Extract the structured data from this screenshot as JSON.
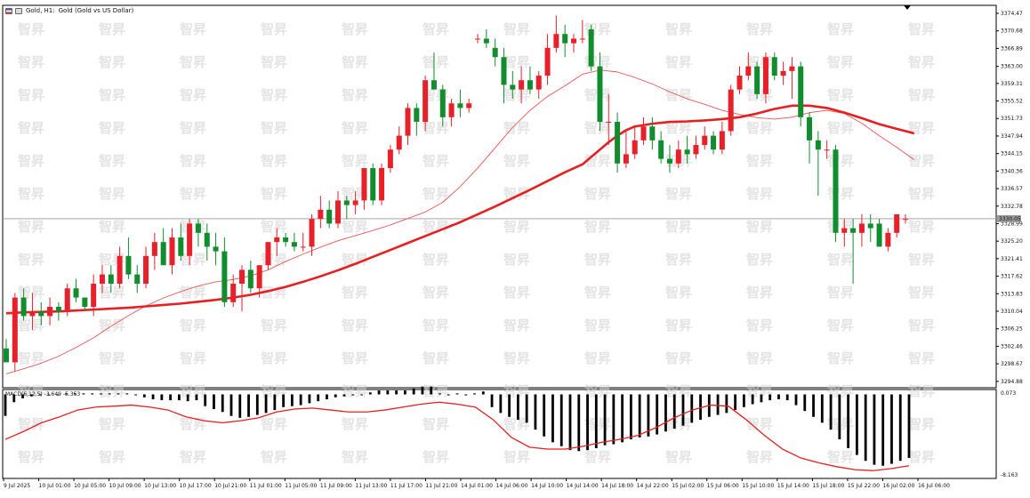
{
  "header": {
    "symbol": "Gold, H1:",
    "description": "Gold (Gold vs US Dollar)"
  },
  "macd": {
    "label": "MACD(6,12,5) -3.649 -5.353"
  },
  "watermark": "智昇",
  "colors": {
    "bull": "#e8202a",
    "bear": "#118d2e",
    "ma_slow": "#e62020",
    "ma_fast": "#ee5555",
    "macd_signal": "#e62020",
    "macd_hist": "#000000"
  },
  "chart_data": {
    "type": "candlestick",
    "price_axis": {
      "ticks": [
        "3374.47",
        "3370.68",
        "3366.89",
        "3363.00",
        "3359.31",
        "3355.52",
        "3351.73",
        "3347.94",
        "3344.15",
        "3340.36",
        "3336.57",
        "3332.78",
        "3328.99",
        "3325.20",
        "3321.41",
        "3317.62",
        "3313.83",
        "3310.04",
        "3306.25",
        "3302.46",
        "3298.67",
        "3294.88"
      ],
      "range": [
        3293.5,
        3376.2
      ],
      "current_price": "3330.05",
      "current_value": 3330.05
    },
    "time_axis": {
      "labels": [
        "9 Jul 2025",
        "10 Jul 01:00",
        "10 Jul 05:00",
        "10 Jul 09:00",
        "10 Jul 13:00",
        "10 Jul 17:00",
        "10 Jul 21:00",
        "11 Jul 01:00",
        "11 Jul 05:00",
        "11 Jul 09:00",
        "11 Jul 13:00",
        "11 Jul 17:00",
        "11 Jul 21:00",
        "14 Jul 01:00",
        "14 Jul 06:00",
        "14 Jul 10:00",
        "14 Jul 14:00",
        "14 Jul 18:00",
        "14 Jul 22:00",
        "15 Jul 02:00",
        "15 Jul 06:00",
        "15 Jul 10:00",
        "15 Jul 14:00",
        "15 Jul 18:00",
        "15 Jul 22:00",
        "16 Jul 02:00",
        "16 Jul 06:00"
      ]
    },
    "candles": [
      [
        3302,
        3304,
        3299,
        3299
      ],
      [
        3299,
        3314,
        3297,
        3313
      ],
      [
        3313,
        3315,
        3308,
        3309
      ],
      [
        3309,
        3314,
        3306,
        3310
      ],
      [
        3310,
        3312,
        3307,
        3309
      ],
      [
        3309,
        3313,
        3307,
        3311
      ],
      [
        3311,
        3312,
        3308,
        3310
      ],
      [
        3310,
        3316,
        3309,
        3315
      ],
      [
        3315,
        3317,
        3312,
        3313
      ],
      [
        3313,
        3313,
        3310,
        3311
      ],
      [
        3311,
        3318,
        3309,
        3316
      ],
      [
        3316,
        3320,
        3314,
        3318
      ],
      [
        3318,
        3320,
        3314,
        3316
      ],
      [
        3316,
        3324,
        3315,
        3322
      ],
      [
        3322,
        3326,
        3317,
        3318
      ],
      [
        3318,
        3320,
        3314,
        3316
      ],
      [
        3316,
        3324,
        3315,
        3322
      ],
      [
        3322,
        3327,
        3319,
        3325
      ],
      [
        3325,
        3328,
        3320,
        3320
      ],
      [
        3320,
        3328,
        3318,
        3326
      ],
      [
        3326,
        3329,
        3321,
        3322
      ],
      [
        3322,
        3330,
        3320,
        3329
      ],
      [
        3329,
        3330,
        3324,
        3327
      ],
      [
        3327,
        3329,
        3321,
        3324
      ],
      [
        3324,
        3327,
        3320,
        3323
      ],
      [
        3323,
        3326,
        3311,
        3312
      ],
      [
        3312,
        3318,
        3311,
        3316
      ],
      [
        3316,
        3320,
        3310,
        3319
      ],
      [
        3319,
        3321,
        3314,
        3315
      ],
      [
        3315,
        3320,
        3313,
        3320
      ],
      [
        3320,
        3325,
        3319,
        3325
      ],
      [
        3325,
        3328,
        3322,
        3326
      ],
      [
        3326,
        3327,
        3324,
        3325
      ],
      [
        3325,
        3327,
        3323,
        3324
      ],
      [
        3324,
        3327,
        3323,
        3324
      ],
      [
        3324,
        3331,
        3322,
        3330
      ],
      [
        3330,
        3335,
        3328,
        3332
      ],
      [
        3332,
        3334,
        3328,
        3329
      ],
      [
        3329,
        3336,
        3328,
        3334
      ],
      [
        3334,
        3335,
        3330,
        3333
      ],
      [
        3333,
        3336,
        3331,
        3334
      ],
      [
        3334,
        3341,
        3332,
        3341
      ],
      [
        3341,
        3342,
        3333,
        3334
      ],
      [
        3334,
        3342,
        3333,
        3341
      ],
      [
        3341,
        3346,
        3340,
        3345
      ],
      [
        3345,
        3350,
        3344,
        3348
      ],
      [
        3348,
        3355,
        3346,
        3354
      ],
      [
        3354,
        3355,
        3348,
        3351
      ],
      [
        3351,
        3361,
        3349,
        3360
      ],
      [
        3360,
        3366,
        3358,
        3358
      ],
      [
        3358,
        3359,
        3350,
        3352
      ],
      [
        3352,
        3356,
        3350,
        3355
      ],
      [
        3355,
        3358,
        3352,
        3354
      ],
      [
        3354,
        3356,
        3353,
        3355
      ],
      [
        3369,
        3370,
        3368,
        3369
      ],
      [
        3369,
        3371,
        3367,
        3368
      ],
      [
        3367,
        3369,
        3363,
        3365
      ],
      [
        3365,
        3367,
        3355,
        3359
      ],
      [
        3359,
        3362,
        3356,
        3358
      ],
      [
        3358,
        3363,
        3355,
        3360
      ],
      [
        3360,
        3363,
        3357,
        3358
      ],
      [
        3358,
        3362,
        3356,
        3361
      ],
      [
        3361,
        3370,
        3359,
        3367
      ],
      [
        3367,
        3374,
        3366,
        3370
      ],
      [
        3370,
        3372,
        3365,
        3368
      ],
      [
        3368,
        3370,
        3366,
        3369
      ],
      [
        3369,
        3373,
        3368,
        3369
      ],
      [
        3371,
        3372,
        3362,
        3363
      ],
      [
        3363,
        3366,
        3349,
        3351
      ],
      [
        3351,
        3357,
        3346,
        3351
      ],
      [
        3351,
        3353,
        3340,
        3342
      ],
      [
        3342,
        3349,
        3341,
        3344
      ],
      [
        3344,
        3350,
        3343,
        3347
      ],
      [
        3347,
        3352,
        3346,
        3350
      ],
      [
        3350,
        3352,
        3345,
        3347
      ],
      [
        3347,
        3349,
        3342,
        3343
      ],
      [
        3343,
        3346,
        3340,
        3342
      ],
      [
        3342,
        3347,
        3341,
        3345
      ],
      [
        3345,
        3348,
        3342,
        3344
      ],
      [
        3344,
        3348,
        3343,
        3346
      ],
      [
        3346,
        3350,
        3345,
        3348
      ],
      [
        3348,
        3349,
        3344,
        3345
      ],
      [
        3345,
        3351,
        3344,
        3349
      ],
      [
        3349,
        3359,
        3348,
        3358
      ],
      [
        3358,
        3363,
        3357,
        3361
      ],
      [
        3361,
        3366,
        3360,
        3363
      ],
      [
        3363,
        3364,
        3356,
        3357
      ],
      [
        3357,
        3366,
        3355,
        3365
      ],
      [
        3365,
        3366,
        3360,
        3361
      ],
      [
        3361,
        3364,
        3359,
        3362
      ],
      [
        3362,
        3365,
        3356,
        3363
      ],
      [
        3363,
        3364,
        3350,
        3352
      ],
      [
        3352,
        3353,
        3342,
        3347
      ],
      [
        3347,
        3349,
        3335,
        3345
      ],
      [
        3345,
        3347,
        3343,
        3345
      ],
      [
        3345,
        3346,
        3325,
        3327
      ],
      [
        3327,
        3330,
        3324,
        3328
      ],
      [
        3328,
        3330,
        3316,
        3327
      ],
      [
        3327,
        3331,
        3324,
        3329
      ],
      [
        3329,
        3331,
        3325,
        3328
      ],
      [
        3329,
        3330,
        3324,
        3324
      ],
      [
        3324,
        3328,
        3323,
        3327
      ],
      [
        3327,
        3331,
        3326,
        3331
      ],
      [
        3330,
        3331,
        3329,
        3330
      ]
    ],
    "ma_slow": [
      3309.6,
      3309.8,
      3309.9,
      3310,
      3310.2,
      3310.4,
      3310.6,
      3310.8,
      3311.1,
      3311.4,
      3311.7,
      3312.1,
      3312.5,
      3313,
      3313.6,
      3314.4,
      3315.3,
      3316.4,
      3317.6,
      3318.9,
      3320.3,
      3321.8,
      3323.3,
      3324.8,
      3326.3,
      3327.8,
      3329.3,
      3331,
      3332.7,
      3334.5,
      3336.3,
      3338.2,
      3340.1,
      3341.8,
      3343.4,
      3345,
      3346.6,
      3348,
      3349.2,
      3350,
      3350.6,
      3351,
      3351.1,
      3351.3,
      3351.6,
      3352,
      3352.8,
      3353.8,
      3354.5,
      3354.5,
      3354,
      3353,
      3351.8,
      3350.5,
      3349.5,
      3348.5
    ],
    "ma_slow_x": [
      0,
      2,
      4,
      6,
      8,
      10,
      12,
      14,
      16,
      18,
      20,
      22,
      24,
      26,
      28,
      30,
      32,
      34,
      36,
      38,
      40,
      42,
      44,
      46,
      48,
      50,
      52,
      54,
      56,
      58,
      60,
      62,
      64,
      66,
      67,
      68,
      69,
      70,
      71,
      72,
      74,
      76,
      78,
      80,
      82,
      84,
      86,
      88,
      90,
      92,
      94,
      96,
      98,
      100,
      102,
      104
    ],
    "ma_fast": [
      3296.5,
      3297.6,
      3298.8,
      3300.3,
      3302.2,
      3304.3,
      3306.8,
      3309.1,
      3311.2,
      3312.9,
      3314.3,
      3315.5,
      3316.4,
      3316.9,
      3317.7,
      3319,
      3320.8,
      3322.4,
      3323.9,
      3325.3,
      3326.4,
      3327.5,
      3328.7,
      3330.1,
      3331.5,
      3333.6,
      3337,
      3341,
      3345.4,
      3349.8,
      3353.5,
      3356.5,
      3358.8,
      3361.3,
      3362.2,
      3361.8,
      3360.6,
      3359.2,
      3357.5,
      3356,
      3354.8,
      3353.5,
      3352.6,
      3351.9,
      3351.6,
      3352,
      3353,
      3353.5,
      3352.8,
      3350.7,
      3348,
      3345.5,
      3342.8
    ],
    "ma_fast_x": [
      0,
      2,
      4,
      6,
      8,
      10,
      12,
      14,
      16,
      18,
      20,
      22,
      24,
      26,
      28,
      30,
      32,
      34,
      36,
      38,
      40,
      42,
      44,
      46,
      48,
      50,
      52,
      54,
      56,
      58,
      60,
      62,
      64,
      66,
      68,
      70,
      72,
      74,
      76,
      78,
      80,
      82,
      84,
      86,
      88,
      90,
      92,
      94,
      96,
      98,
      100,
      102,
      104
    ],
    "macd_axis": {
      "top": "0.073",
      "bottom": "-8.163",
      "range": [
        -8.6,
        0.5
      ]
    },
    "macd_hist": [
      -2.2,
      -0.8,
      -0.4,
      -0.2,
      -0.1,
      -0.1,
      0,
      0.1,
      0.1,
      0.1,
      0.1,
      0.1,
      0.1,
      0.1,
      0.1,
      0,
      -0.3,
      -0.5,
      -0.6,
      -0.6,
      -0.6,
      -0.7,
      -0.6,
      -1.2,
      -1.5,
      -1.8,
      -2.2,
      -2.4,
      -2.3,
      -2.1,
      -1.9,
      -1.6,
      -1.3,
      -1.2,
      -1.1,
      -0.9,
      -0.7,
      -0.5,
      -0.3,
      -0.2,
      -0.1,
      0,
      0.2,
      0.4,
      0.4,
      0.4,
      0.4,
      0.6,
      0.8,
      0.8,
      0.1,
      -0.1,
      0.1,
      -0.1,
      0.1,
      0.3,
      -1.3,
      -1.9,
      -2.3,
      -2.6,
      -2.9,
      -3.6,
      -4.3,
      -4.9,
      -5.3,
      -5.7,
      -5.8,
      -5.7,
      -5.5,
      -5.2,
      -5.1,
      -4.9,
      -4.6,
      -4.4,
      -4.3,
      -4.1,
      -3.8,
      -3.5,
      -3.2,
      -2.9,
      -2.6,
      -2.3,
      -2.1,
      -1.9,
      -1.6,
      -1.3,
      -1,
      -0.8,
      -0.6,
      -0.5,
      -0.6,
      -1.1,
      -1.7,
      -2.3,
      -2.9,
      -3.6,
      -4.6,
      -5.5,
      -6.2,
      -6.8,
      -7.2,
      -7.3,
      -7.1,
      -6.8,
      -6.5
    ],
    "macd_signal": [
      -4.6,
      -3.8,
      -2.9,
      -2.3,
      -1.6,
      -1.3,
      -1.2,
      -1.1,
      -1.3,
      -1.6,
      -2.3,
      -2.7,
      -2.9,
      -2.7,
      -2.4,
      -1.8,
      -1.5,
      -1.4,
      -1.6,
      -1.8,
      -1.8,
      -1.6,
      -1.3,
      -1.0,
      -0.8,
      -1.0,
      -1.3,
      -2.6,
      -4.4,
      -5.4,
      -5.6,
      -5.6,
      -5.3,
      -4.9,
      -4.6,
      -4.2,
      -3.4,
      -2.4,
      -1.6,
      -1.1,
      -1.2,
      -2.6,
      -4.2,
      -5.6,
      -6.5,
      -7.0,
      -7.4,
      -7.7,
      -7.8,
      -7.6,
      -7.3
    ],
    "macd_signal_x": [
      0,
      4,
      8,
      12,
      16,
      20,
      24,
      28,
      32,
      36,
      40,
      44,
      48,
      52,
      56,
      60,
      64,
      68,
      72,
      76,
      80,
      84,
      88,
      92,
      96,
      100,
      104,
      108,
      112,
      116,
      120,
      124,
      128,
      132,
      136,
      140,
      144,
      148,
      152,
      156,
      160,
      164,
      168,
      172,
      176,
      180,
      184,
      188,
      192,
      196,
      200
    ]
  }
}
